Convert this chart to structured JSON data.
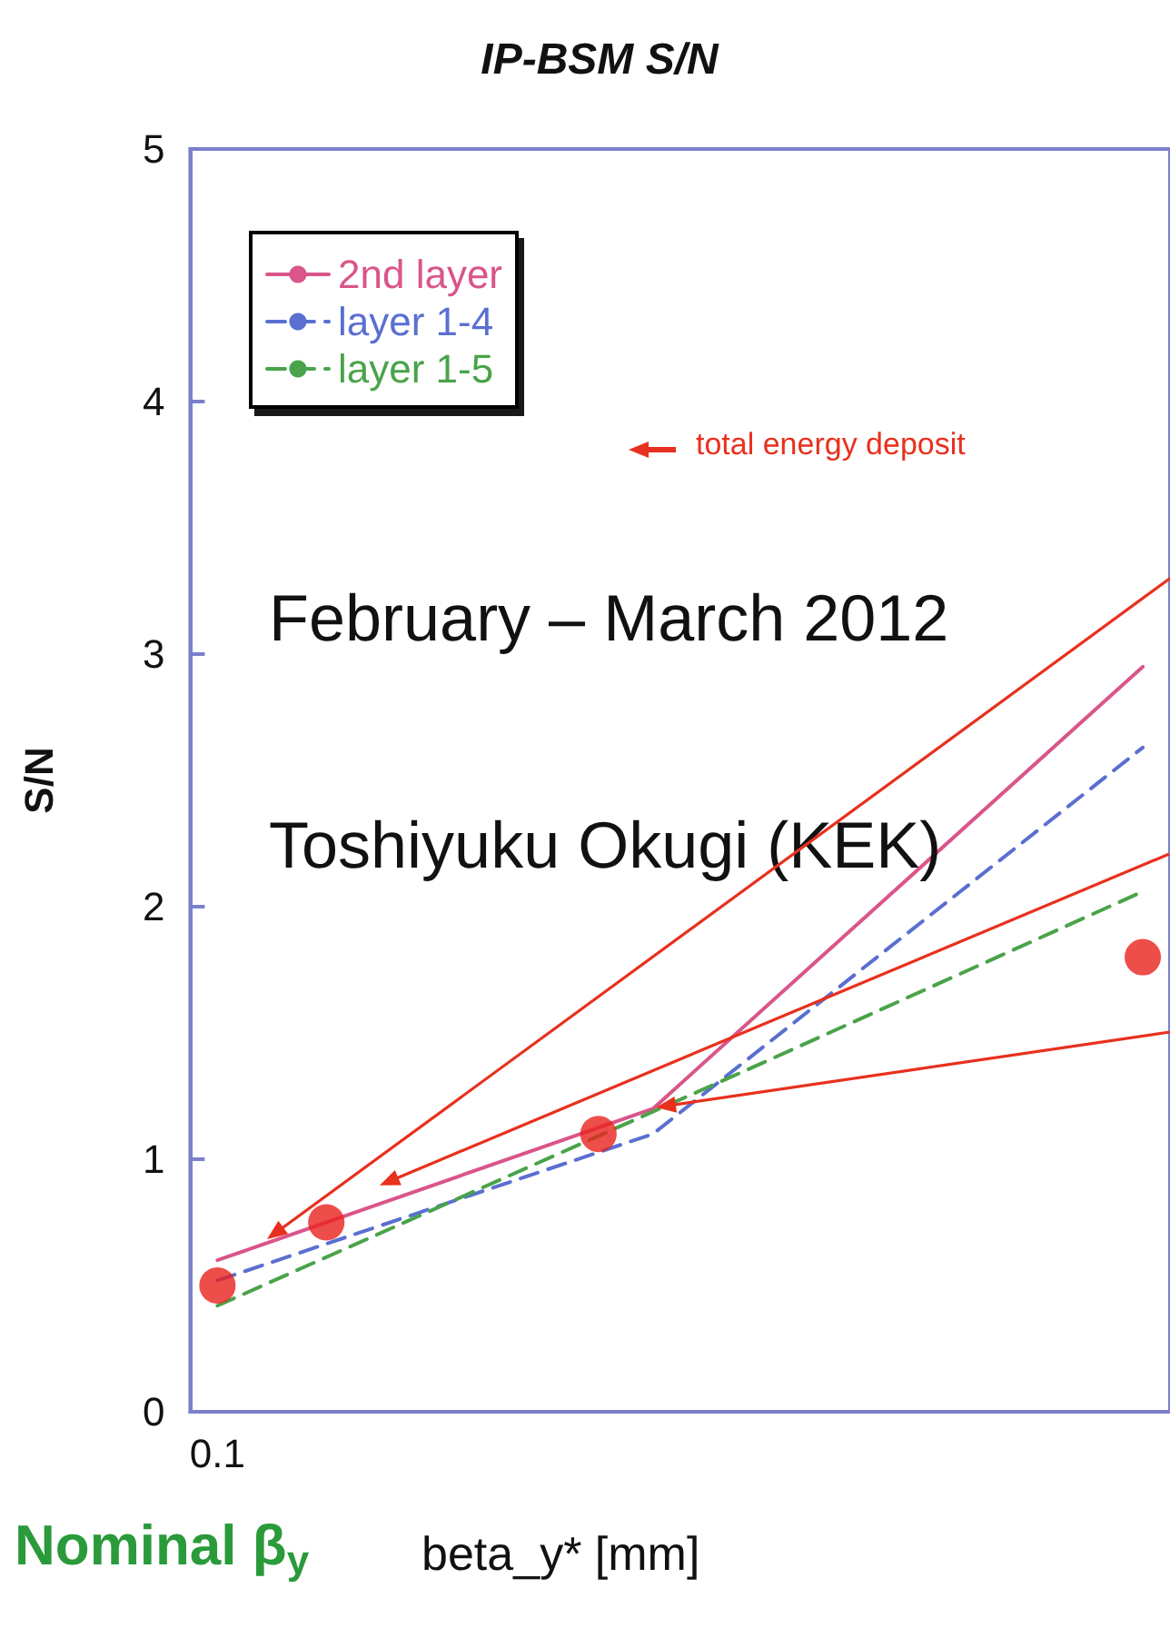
{
  "chart_data": {
    "type": "line",
    "title": "IP-BSM S/N",
    "xlabel": "beta_y* [mm]",
    "ylabel": "S/N",
    "categories": [
      "0.1",
      null,
      null,
      null,
      null,
      null,
      null,
      null,
      null,
      null,
      null,
      null,
      null,
      null,
      null,
      null,
      null,
      null
    ],
    "series": [
      {
        "name": "2nd layer",
        "color": "#d9558a",
        "line_style": "solid",
        "marker": "none",
        "values": [
          0.6,
          null,
          null,
          null,
          null,
          null,
          null,
          null,
          1.2,
          null,
          null,
          null,
          null,
          null,
          null,
          null,
          null,
          2.95
        ]
      },
      {
        "name": "layer 1-4",
        "color": "#5a6fd0",
        "line_style": "dashed",
        "marker": "none",
        "values": [
          0.52,
          null,
          null,
          null,
          null,
          null,
          null,
          null,
          1.1,
          null,
          null,
          null,
          null,
          null,
          null,
          null,
          null,
          2.63
        ]
      },
      {
        "name": "layer 1-5",
        "color": "#4aa34a",
        "line_style": "dashed",
        "marker": "none",
        "values": [
          0.42,
          null,
          null,
          null,
          null,
          null,
          null,
          null,
          null,
          null,
          1.38,
          null,
          null,
          null,
          null,
          null,
          null,
          2.06
        ]
      },
      {
        "type": "scatter",
        "color": "#e8221b",
        "marker": "circle",
        "values": [
          0.5,
          null,
          0.75,
          null,
          null,
          null,
          null,
          1.1,
          null,
          null,
          null,
          null,
          null,
          null,
          null,
          null,
          null,
          1.8
        ]
      }
    ],
    "ylim": [
      0,
      5
    ],
    "yticks": [
      0,
      1,
      2,
      3,
      4,
      5
    ],
    "grid": false,
    "legend": "top left",
    "annotations": [
      "February – March 2012",
      "Toshiyuku Okugi (KEK)",
      "total energy deposit",
      "Nominal β$_{y}$"
    ]
  }
}
